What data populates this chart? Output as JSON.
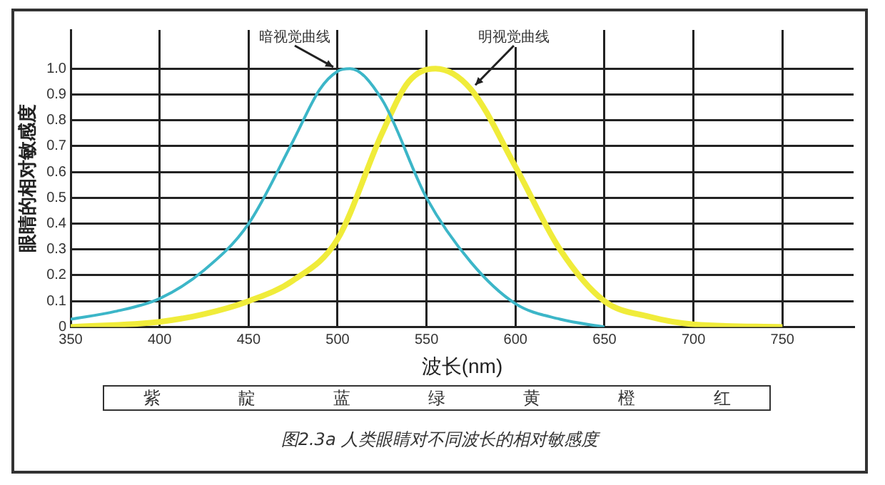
{
  "chart_data": {
    "type": "line",
    "xlabel": "波长(nm)",
    "ylabel": "眼睛的相对敏感度",
    "xlim": [
      350,
      790
    ],
    "xticks": [
      350,
      400,
      450,
      500,
      550,
      600,
      650,
      700,
      750
    ],
    "ylim": [
      0,
      1.15
    ],
    "yticks": [
      0,
      0.1,
      0.2,
      0.3,
      0.4,
      0.5,
      0.6,
      0.7,
      0.8,
      0.9,
      {
        "value": 1,
        "label": "1.0"
      }
    ],
    "grid": true,
    "legend": false,
    "marker": "none",
    "line_style": "solid",
    "series": [
      {
        "name": "暗视觉曲线",
        "color": "#3cb6c8",
        "x": [
          350,
          375,
          400,
          425,
          450,
          475,
          490,
          500,
          507,
          525,
          550,
          575,
          600,
          625,
          650
        ],
        "values": [
          0.03,
          0.06,
          0.11,
          0.22,
          0.4,
          0.72,
          0.92,
          0.99,
          1.0,
          0.88,
          0.5,
          0.25,
          0.09,
          0.03,
          0.0
        ]
      },
      {
        "name": "明视觉曲线",
        "color": "#f0ec3a",
        "x": [
          350,
          400,
          425,
          450,
          475,
          500,
          525,
          540,
          555,
          575,
          600,
          625,
          650,
          675,
          700,
          750
        ],
        "values": [
          0.0,
          0.02,
          0.05,
          0.1,
          0.18,
          0.34,
          0.75,
          0.95,
          1.0,
          0.92,
          0.62,
          0.3,
          0.1,
          0.04,
          0.01,
          0.0
        ]
      }
    ],
    "annotations": [
      "紫",
      "靛",
      "蓝",
      "绿",
      "黄",
      "橙",
      "红",
      "图2.3a 人类眼睛对不同波长的相对敏感度"
    ]
  }
}
